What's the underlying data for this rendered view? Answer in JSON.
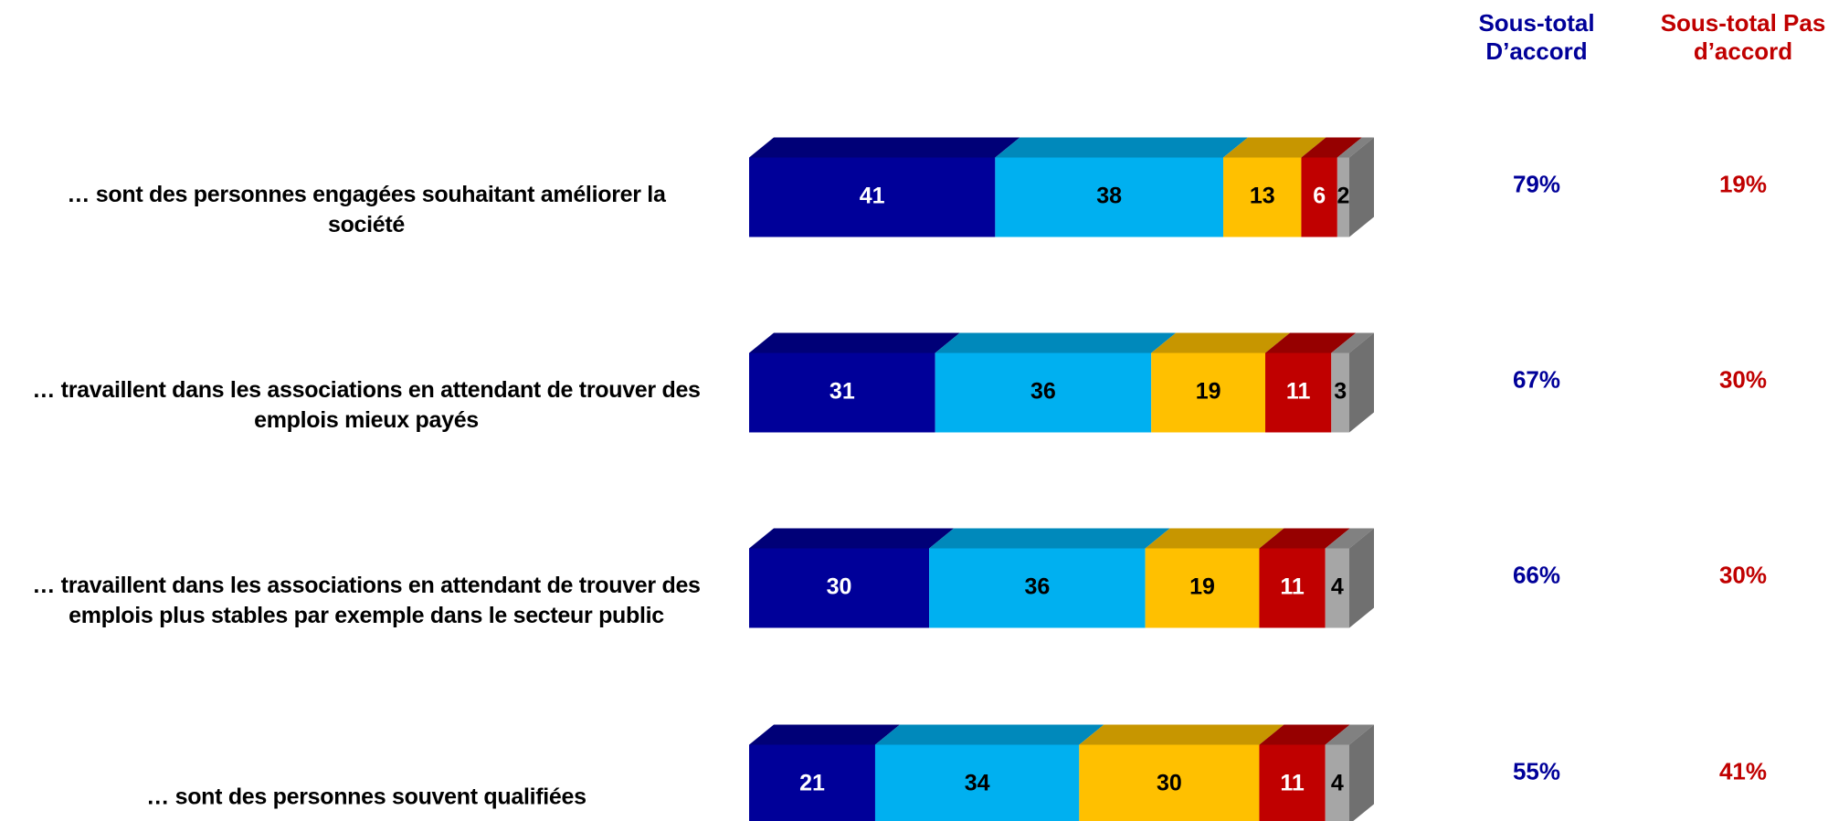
{
  "chart_data": {
    "type": "stacked-bar-3d",
    "categories": [
      "… sont des personnes engagées souhaitant améliorer la société",
      "… travaillent dans les associations en attendant de trouver des emplois mieux payés",
      "… travaillent dans les associations en attendant de trouver des emplois plus stables par exemple dans le secteur public",
      "… sont des personnes souvent qualifiées"
    ],
    "series": [
      {
        "color": "#000099",
        "label_color": "#ffffff",
        "values": [
          41,
          31,
          30,
          21
        ]
      },
      {
        "color": "#00b0f0",
        "label_color": "#000000",
        "values": [
          38,
          36,
          36,
          34
        ]
      },
      {
        "color": "#ffc000",
        "label_color": "#000000",
        "values": [
          13,
          19,
          19,
          30
        ]
      },
      {
        "color": "#c00000",
        "label_color": "#ffffff",
        "values": [
          6,
          11,
          11,
          11
        ]
      },
      {
        "color": "#a6a6a6",
        "label_color": "#000000",
        "values": [
          2,
          3,
          4,
          4
        ]
      }
    ],
    "xlim": [
      0,
      100
    ],
    "subtotals": [
      {
        "title": "Sous-total D’accord",
        "color": "#000099",
        "values": [
          79,
          67,
          66,
          55
        ],
        "value_labels": [
          "79%",
          "67%",
          "66%",
          "55%"
        ]
      },
      {
        "title": "Sous-total Pas d’accord",
        "color": "#c00000",
        "values": [
          19,
          30,
          30,
          41
        ],
        "value_labels": [
          "19%",
          "30%",
          "30%",
          "41%"
        ]
      }
    ]
  }
}
